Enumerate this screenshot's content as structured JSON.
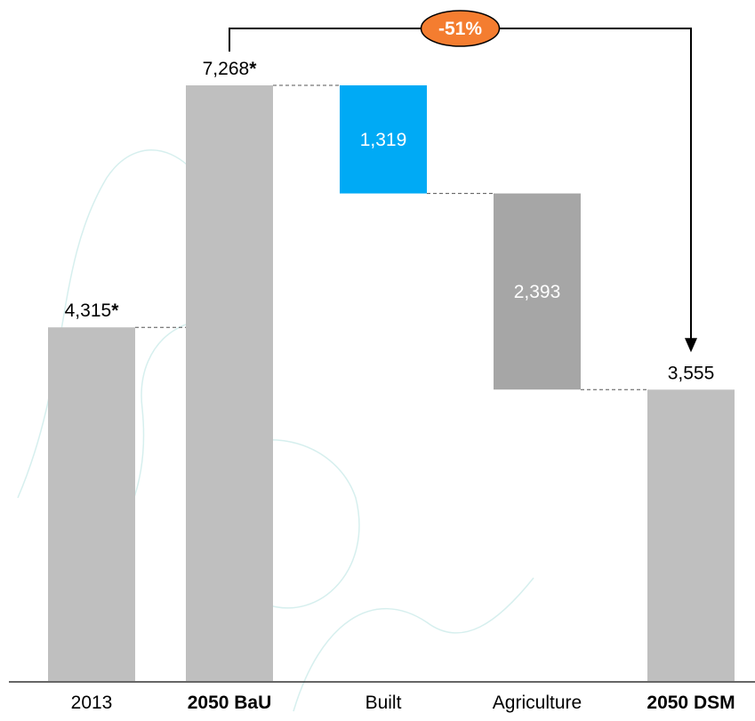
{
  "chart_data": {
    "type": "waterfall",
    "categories": [
      "2013",
      "2050 BaU",
      "Built",
      "Agriculture",
      "2050 DSM"
    ],
    "values": [
      4315,
      7268,
      1319,
      2393,
      3555
    ],
    "value_labels": [
      "4,315*",
      "7,268*",
      "1,319",
      "2,393",
      "3,555"
    ],
    "measures": [
      "total",
      "total",
      "decrease",
      "decrease",
      "total"
    ],
    "colors": [
      "#bfbfbf",
      "#bfbfbf",
      "#00aaf5",
      "#a6a6a6",
      "#bfbfbf"
    ],
    "bold_categories": [
      false,
      true,
      false,
      false,
      true
    ],
    "annotation": "-51%"
  }
}
